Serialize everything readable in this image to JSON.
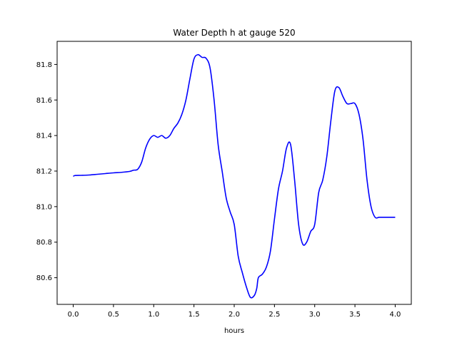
{
  "chart_data": {
    "type": "line",
    "title": "Water Depth h at gauge 520",
    "xlabel": "hours",
    "ylabel": "",
    "xlim": [
      -0.2,
      4.2
    ],
    "ylim": [
      80.45,
      81.93
    ],
    "xticks": [
      0.0,
      0.5,
      1.0,
      1.5,
      2.0,
      2.5,
      3.0,
      3.5,
      4.0
    ],
    "xtick_labels": [
      "0.0",
      "0.5",
      "1.0",
      "1.5",
      "2.0",
      "2.5",
      "3.0",
      "3.5",
      "4.0"
    ],
    "yticks": [
      80.6,
      80.8,
      81.0,
      81.2,
      81.4,
      81.6,
      81.8
    ],
    "ytick_labels": [
      "80.6",
      "80.8",
      "81.0",
      "81.2",
      "81.4",
      "81.6",
      "81.8"
    ],
    "grid": false,
    "legend": "none",
    "series": [
      {
        "color": "#0000ff",
        "x": [
          0.0,
          0.02,
          0.1,
          0.2,
          0.3,
          0.4,
          0.5,
          0.6,
          0.7,
          0.75,
          0.8,
          0.85,
          0.9,
          0.95,
          1.0,
          1.05,
          1.1,
          1.15,
          1.2,
          1.25,
          1.3,
          1.35,
          1.4,
          1.45,
          1.5,
          1.55,
          1.6,
          1.65,
          1.7,
          1.75,
          1.8,
          1.85,
          1.9,
          1.95,
          2.0,
          2.05,
          2.1,
          2.15,
          2.2,
          2.25,
          2.28,
          2.3,
          2.35,
          2.4,
          2.45,
          2.5,
          2.55,
          2.6,
          2.65,
          2.7,
          2.75,
          2.8,
          2.85,
          2.9,
          2.95,
          3.0,
          3.05,
          3.1,
          3.15,
          3.2,
          3.25,
          3.3,
          3.35,
          3.4,
          3.45,
          3.5,
          3.55,
          3.6,
          3.65,
          3.7,
          3.75,
          3.8,
          3.85,
          3.9,
          3.95,
          4.0
        ],
        "y": [
          81.17,
          81.175,
          81.176,
          81.178,
          81.182,
          81.186,
          81.19,
          81.193,
          81.198,
          81.205,
          81.21,
          81.25,
          81.33,
          81.38,
          81.4,
          81.39,
          81.4,
          81.385,
          81.4,
          81.44,
          81.47,
          81.52,
          81.6,
          81.72,
          81.83,
          81.855,
          81.84,
          81.835,
          81.78,
          81.6,
          81.35,
          81.2,
          81.05,
          80.97,
          80.9,
          80.72,
          80.63,
          80.55,
          80.49,
          80.5,
          80.54,
          80.6,
          80.62,
          80.66,
          80.75,
          80.93,
          81.1,
          81.2,
          81.33,
          81.35,
          81.15,
          80.9,
          80.79,
          80.8,
          80.86,
          80.9,
          81.08,
          81.15,
          81.28,
          81.48,
          81.65,
          81.67,
          81.62,
          81.58,
          81.58,
          81.58,
          81.52,
          81.38,
          81.15,
          81.0,
          80.94,
          80.94,
          80.94,
          80.94,
          80.94,
          80.94
        ]
      }
    ]
  }
}
